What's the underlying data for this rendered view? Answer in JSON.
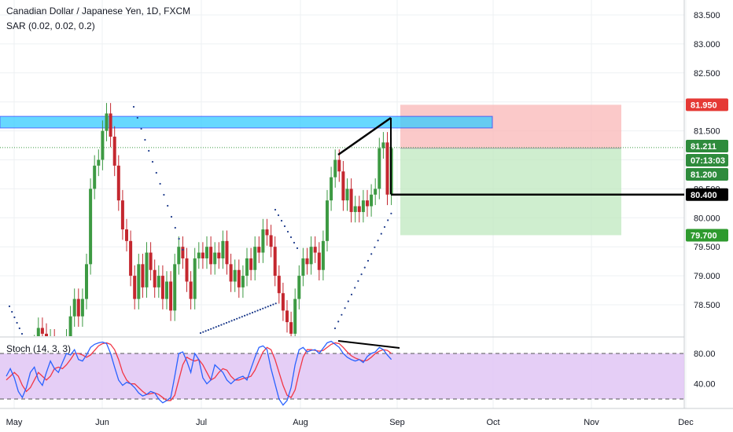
{
  "header": {
    "title": "Canadian Dollar / Japanese Yen, 1D, FXCM",
    "sar_label": "SAR (0.02, 0.02, 0.2)",
    "stoch_label": "Stoch (14, 3, 3)"
  },
  "colors": {
    "up": "#3d9a43",
    "down": "#c4272f",
    "sar": "#1e3c8c",
    "zone_fill": "#33ccff",
    "stop_zone": "#f9b7b7",
    "target_zone": "#bfe8bf",
    "stoch_band": "#e1c6f5",
    "stoch_k": "#2962ff",
    "stoch_d": "#f23645",
    "tag_stop": "#e53935",
    "tag_price": "#2e8b3c",
    "tag_entry": "#000000",
    "tag_target": "#2e9a2e"
  },
  "price_tags": {
    "stop": "81.950",
    "last": "81.211",
    "countdown": "07:13:03",
    "close": "81.200",
    "entry": "80.400",
    "target": "79.700"
  },
  "chart_data": [
    {
      "type": "candlestick",
      "title": "Canadian Dollar / Japanese Yen, 1D, FXCM",
      "y_ticks": [
        "83.500",
        "83.000",
        "82.500",
        "81.500",
        "81.000",
        "80.500",
        "80.000",
        "79.500",
        "79.000",
        "78.500"
      ],
      "x_ticks": [
        "May",
        "Jun",
        "Jul",
        "Aug",
        "Sep",
        "Oct",
        "Nov",
        "Dec"
      ],
      "ylim": [
        78.0,
        83.8
      ],
      "price_scale": "right",
      "grid": true,
      "horizontal_zone": [
        81.55,
        81.75
      ],
      "short_position": {
        "entry": 81.2,
        "stop": 81.95,
        "target": 79.7
      },
      "entry_line": 80.4,
      "closes": [
        76.9,
        77.2,
        77.3,
        77.0,
        77.4,
        77.5,
        77.4,
        77.8,
        78.1,
        78.0,
        77.7,
        77.9,
        77.6,
        77.5,
        77.7,
        77.9,
        78.3,
        78.6,
        78.3,
        78.6,
        79.2,
        80.5,
        80.9,
        81.0,
        81.5,
        81.8,
        81.4,
        80.9,
        80.3,
        79.8,
        79.6,
        79.0,
        78.6,
        79.2,
        78.8,
        79.4,
        79.1,
        78.8,
        79.0,
        78.6,
        78.9,
        78.4,
        79.2,
        79.5,
        79.3,
        78.9,
        78.6,
        79.3,
        79.4,
        79.3,
        79.5,
        79.2,
        79.4,
        79.3,
        79.6,
        79.2,
        78.9,
        79.1,
        78.8,
        79.0,
        79.3,
        79.1,
        79.5,
        79.4,
        79.8,
        79.7,
        79.5,
        79.0,
        78.7,
        78.4,
        78.2,
        78.0,
        78.6,
        79.0,
        79.3,
        79.2,
        79.5,
        79.4,
        79.1,
        79.6,
        80.3,
        80.7,
        81.0,
        80.8,
        80.3,
        80.5,
        80.1,
        80.2,
        80.1,
        80.3,
        80.2,
        80.4,
        80.5,
        81.2,
        81.3,
        80.4,
        81.2
      ],
      "stochastic": {
        "name": "Stoch (14, 3, 3)",
        "levels": [
          20,
          80
        ],
        "y_ticks": [
          "80.00",
          "40.00"
        ],
        "k": [
          50,
          60,
          48,
          30,
          22,
          35,
          55,
          62,
          45,
          38,
          55,
          70,
          60,
          55,
          68,
          80,
          78,
          85,
          72,
          70,
          78,
          88,
          92,
          94,
          95,
          93,
          80,
          62,
          45,
          38,
          42,
          40,
          35,
          28,
          24,
          26,
          30,
          28,
          20,
          15,
          18,
          22,
          50,
          80,
          82,
          70,
          55,
          80,
          72,
          48,
          40,
          45,
          65,
          60,
          55,
          45,
          40,
          45,
          48,
          50,
          45,
          60,
          75,
          88,
          90,
          85,
          60,
          40,
          20,
          12,
          18,
          35,
          65,
          85,
          88,
          82,
          84,
          85,
          80,
          87,
          94,
          96,
          92,
          88,
          80,
          75,
          72,
          70,
          72,
          68,
          76,
          80,
          82,
          88,
          85,
          78,
          72
        ],
        "d": [
          45,
          50,
          55,
          50,
          38,
          30,
          35,
          45,
          55,
          50,
          45,
          50,
          60,
          62,
          60,
          65,
          72,
          80,
          80,
          78,
          75,
          78,
          84,
          90,
          93,
          94,
          92,
          85,
          72,
          55,
          45,
          40,
          40,
          35,
          30,
          26,
          27,
          28,
          26,
          22,
          18,
          18,
          25,
          45,
          65,
          75,
          72,
          70,
          72,
          65,
          55,
          45,
          48,
          55,
          60,
          58,
          50,
          45,
          45,
          47,
          48,
          50,
          58,
          70,
          82,
          88,
          85,
          72,
          55,
          38,
          25,
          22,
          32,
          55,
          75,
          85,
          85,
          84,
          83,
          84,
          88,
          92,
          94,
          93,
          88,
          82,
          77,
          74,
          72,
          70,
          71,
          75,
          80,
          83,
          85,
          84,
          80
        ]
      }
    }
  ]
}
